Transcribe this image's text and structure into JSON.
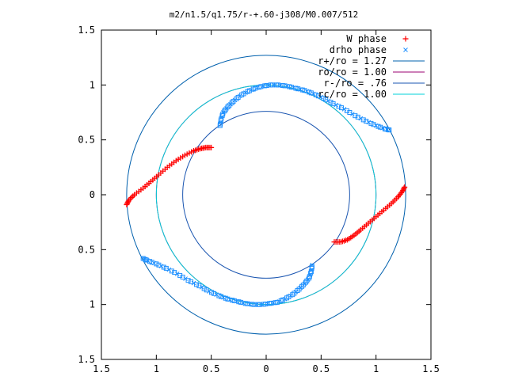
{
  "chart_data": {
    "type": "scatter",
    "title": "m2/n1.5/q1.75/r-+.60-j308/M0.007/512",
    "xlabel": "",
    "ylabel": "",
    "xlim": [
      -1.5,
      1.5
    ],
    "ylim": [
      -1.5,
      1.5
    ],
    "x_ticks": [
      "1.5",
      "1",
      "0.5",
      "0",
      "0.5",
      "1",
      "1.5"
    ],
    "y_ticks": [
      "1.5",
      "1",
      "0.5",
      "0",
      "0.5",
      "1",
      "1.5"
    ],
    "grid": false,
    "legend_position": "top-right",
    "colors": {
      "w_phase": "#ff0000",
      "drho_phase": "#1e90ff",
      "r_plus": "#0060ad",
      "ro": "#9b0070",
      "r_minus": "#1a55b0",
      "rc": "#00d0d8"
    },
    "series": [
      {
        "name": "W phase",
        "marker": "plus",
        "color": "#ff0000",
        "points": [
          [
            -1.27,
            -0.09
          ],
          [
            -1.25,
            -0.05
          ],
          [
            -1.2,
            0.0
          ],
          [
            -1.12,
            0.06
          ],
          [
            -1.05,
            0.12
          ],
          [
            -0.98,
            0.18
          ],
          [
            -0.9,
            0.25
          ],
          [
            -0.82,
            0.31
          ],
          [
            -0.74,
            0.36
          ],
          [
            -0.66,
            0.4
          ],
          [
            -0.6,
            0.42
          ],
          [
            -0.55,
            0.43
          ],
          [
            -0.5,
            0.43
          ],
          [
            0.62,
            -0.43
          ],
          [
            0.68,
            -0.43
          ],
          [
            0.74,
            -0.41
          ],
          [
            0.8,
            -0.37
          ],
          [
            0.86,
            -0.32
          ],
          [
            0.93,
            -0.26
          ],
          [
            1.0,
            -0.2
          ],
          [
            1.07,
            -0.14
          ],
          [
            1.14,
            -0.08
          ],
          [
            1.2,
            -0.02
          ],
          [
            1.24,
            0.03
          ],
          [
            1.26,
            0.07
          ]
        ]
      },
      {
        "name": "drho phase",
        "marker": "square/cross",
        "color": "#1e90ff",
        "points": [
          [
            -0.42,
            0.63
          ],
          [
            -0.41,
            0.69
          ],
          [
            -0.39,
            0.75
          ],
          [
            -0.35,
            0.8
          ],
          [
            -0.3,
            0.85
          ],
          [
            -0.24,
            0.9
          ],
          [
            -0.17,
            0.94
          ],
          [
            -0.1,
            0.97
          ],
          [
            -0.03,
            0.99
          ],
          [
            0.04,
            1.0
          ],
          [
            0.11,
            1.0
          ],
          [
            0.19,
            0.99
          ],
          [
            0.27,
            0.97
          ],
          [
            0.35,
            0.95
          ],
          [
            0.43,
            0.92
          ],
          [
            0.52,
            0.88
          ],
          [
            0.61,
            0.83
          ],
          [
            0.71,
            0.78
          ],
          [
            0.81,
            0.72
          ],
          [
            0.91,
            0.67
          ],
          [
            1.0,
            0.63
          ],
          [
            1.08,
            0.6
          ],
          [
            1.12,
            0.59
          ],
          [
            0.42,
            -0.64
          ],
          [
            0.41,
            -0.7
          ],
          [
            0.39,
            -0.76
          ],
          [
            0.35,
            -0.81
          ],
          [
            0.3,
            -0.86
          ],
          [
            0.24,
            -0.91
          ],
          [
            0.17,
            -0.95
          ],
          [
            0.1,
            -0.98
          ],
          [
            0.03,
            -0.99
          ],
          [
            -0.04,
            -1.0
          ],
          [
            -0.11,
            -1.0
          ],
          [
            -0.19,
            -0.99
          ],
          [
            -0.27,
            -0.97
          ],
          [
            -0.35,
            -0.95
          ],
          [
            -0.43,
            -0.92
          ],
          [
            -0.52,
            -0.88
          ],
          [
            -0.61,
            -0.83
          ],
          [
            -0.71,
            -0.78
          ],
          [
            -0.81,
            -0.72
          ],
          [
            -0.91,
            -0.67
          ],
          [
            -1.0,
            -0.63
          ],
          [
            -1.08,
            -0.6
          ],
          [
            -1.12,
            -0.58
          ]
        ]
      }
    ],
    "circles": [
      {
        "name": "r+/ro = 1.27",
        "radius": 1.27,
        "color": "#0060ad"
      },
      {
        "name": "ro/ro = 1.00",
        "radius": 1.0,
        "color": "#9b0070"
      },
      {
        "name": "r-/ro = .76",
        "radius": 0.76,
        "color": "#1a55b0"
      },
      {
        "name": "rc/ro = 1.00",
        "radius": 1.0,
        "color": "#00d0d8"
      }
    ]
  }
}
